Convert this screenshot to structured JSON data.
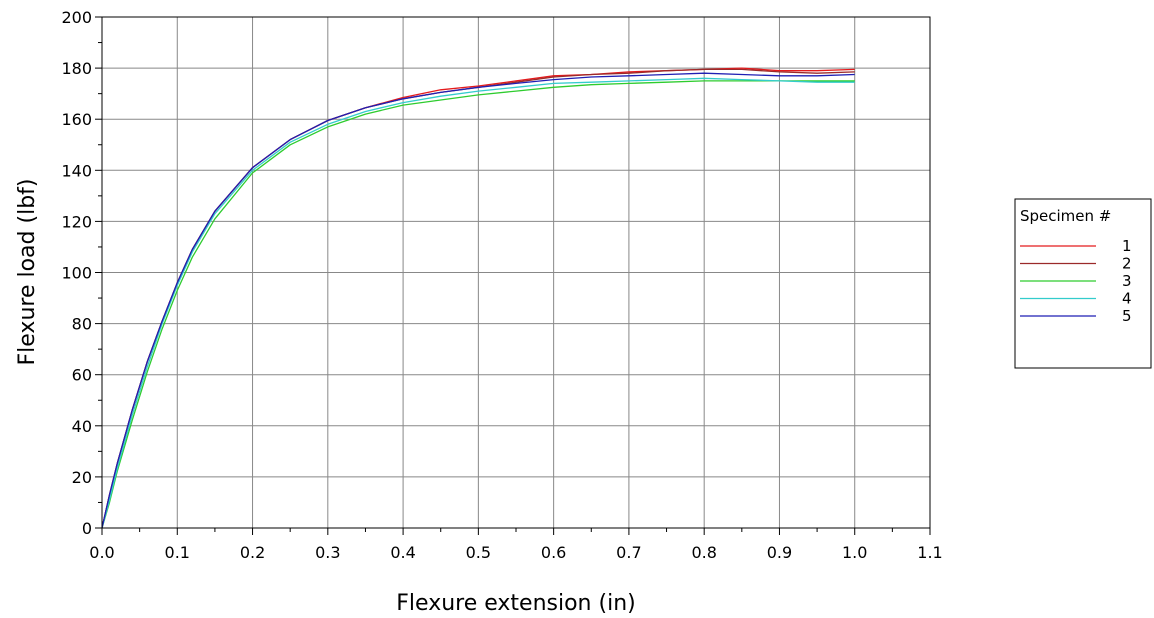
{
  "chart_data": {
    "type": "line",
    "xlabel": "Flexure extension (in)",
    "ylabel": "Flexure load (lbf)",
    "xlim": [
      0,
      1.1
    ],
    "ylim": [
      0,
      200
    ],
    "x_ticks": [
      "0.0",
      "0.1",
      "0.2",
      "0.3",
      "0.4",
      "0.5",
      "0.6",
      "0.7",
      "0.8",
      "0.9",
      "1.0",
      "1.1"
    ],
    "y_ticks": [
      "0",
      "20",
      "40",
      "60",
      "80",
      "100",
      "120",
      "140",
      "160",
      "180",
      "200"
    ],
    "grid": true,
    "legend": {
      "title": "Specimen #",
      "placement": "right"
    },
    "series": [
      {
        "name": "1",
        "color": "#e41a1c",
        "x": [
          0,
          0.01,
          0.02,
          0.04,
          0.06,
          0.08,
          0.1,
          0.12,
          0.15,
          0.2,
          0.25,
          0.3,
          0.35,
          0.4,
          0.45,
          0.5,
          0.55,
          0.6,
          0.65,
          0.7,
          0.75,
          0.8,
          0.85,
          0.9,
          0.95,
          1.0
        ],
        "y": [
          0,
          13,
          25,
          46,
          65,
          81,
          96,
          109,
          124,
          141,
          152,
          159.5,
          164.5,
          168.5,
          171.5,
          173,
          175,
          177,
          177.5,
          178.5,
          179,
          179.5,
          180,
          179,
          179,
          179.5
        ]
      },
      {
        "name": "2",
        "color": "#9b2a2a",
        "x": [
          0,
          0.01,
          0.02,
          0.04,
          0.06,
          0.08,
          0.1,
          0.12,
          0.15,
          0.2,
          0.25,
          0.3,
          0.35,
          0.4,
          0.45,
          0.5,
          0.55,
          0.6,
          0.65,
          0.7,
          0.75,
          0.8,
          0.85,
          0.9,
          0.95,
          1.0
        ],
        "y": [
          0,
          13,
          25,
          46,
          65,
          81,
          96,
          109,
          124,
          141,
          152,
          159.5,
          164.5,
          168,
          170.5,
          172.5,
          174.5,
          176.5,
          177.5,
          178,
          179,
          179.5,
          179.5,
          178.5,
          178,
          178.5
        ]
      },
      {
        "name": "3",
        "color": "#2ecc2e",
        "x": [
          0,
          0.01,
          0.02,
          0.04,
          0.06,
          0.08,
          0.1,
          0.12,
          0.15,
          0.2,
          0.25,
          0.3,
          0.35,
          0.4,
          0.45,
          0.5,
          0.55,
          0.6,
          0.65,
          0.7,
          0.75,
          0.8,
          0.85,
          0.9,
          0.95,
          1.0
        ],
        "y": [
          0,
          10,
          22,
          42,
          61,
          78,
          93,
          106,
          121,
          139,
          150,
          157,
          162,
          165.5,
          167.5,
          169.5,
          171,
          172.5,
          173.5,
          174,
          174.5,
          175,
          175,
          175,
          175,
          175
        ]
      },
      {
        "name": "4",
        "color": "#33cccc",
        "x": [
          0,
          0.01,
          0.02,
          0.04,
          0.06,
          0.08,
          0.1,
          0.12,
          0.15,
          0.2,
          0.25,
          0.3,
          0.35,
          0.4,
          0.45,
          0.5,
          0.55,
          0.6,
          0.65,
          0.7,
          0.75,
          0.8,
          0.85,
          0.9,
          0.95,
          1.0
        ],
        "y": [
          0,
          11,
          23,
          44,
          63,
          80,
          95,
          108,
          123,
          140,
          151,
          158,
          163,
          166.5,
          169,
          171,
          172.5,
          174,
          174.5,
          175,
          175.5,
          176,
          175.5,
          175,
          174.5,
          174.5
        ]
      },
      {
        "name": "5",
        "color": "#1f1fb4",
        "x": [
          0,
          0.01,
          0.02,
          0.04,
          0.06,
          0.08,
          0.1,
          0.12,
          0.15,
          0.2,
          0.25,
          0.3,
          0.35,
          0.4,
          0.45,
          0.5,
          0.55,
          0.6,
          0.65,
          0.7,
          0.75,
          0.8,
          0.85,
          0.9,
          0.95,
          1.0
        ],
        "y": [
          0,
          13,
          25,
          46,
          65,
          81,
          96,
          109,
          124,
          141,
          152,
          159.5,
          164.5,
          168,
          170.5,
          172.5,
          174,
          175.5,
          176.5,
          177,
          177.5,
          178,
          177.5,
          177,
          177,
          177.5
        ]
      }
    ]
  }
}
